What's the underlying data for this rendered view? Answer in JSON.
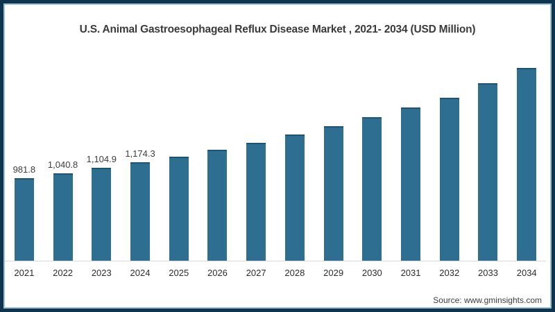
{
  "frame": {
    "border_color": "#0e3450",
    "inner_line_color": "#9ec1d3",
    "background": "#ffffff"
  },
  "title": "U.S. Animal Gastroesophageal Reflux Disease Market , 2021- 2034 (USD Million)",
  "source": "Source: www.gminsights.com",
  "chart_data": {
    "type": "bar",
    "title": "U.S. Animal Gastroesophageal Reflux Disease Market , 2021- 2034 (USD Million)",
    "unit": "USD Million",
    "categories": [
      "2021",
      "2022",
      "2023",
      "2024",
      "2025",
      "2026",
      "2027",
      "2028",
      "2029",
      "2030",
      "2031",
      "2032",
      "2033",
      "2034"
    ],
    "values": [
      981.8,
      1040.8,
      1104.9,
      1174.3,
      1240,
      1320,
      1405,
      1500,
      1600,
      1705,
      1822,
      1942,
      2110,
      2295
    ],
    "data_labels": [
      "981.8",
      "1,040.8",
      "1,104.9",
      "1,174.3",
      "",
      "",
      "",
      "",
      "",
      "",
      "",
      "",
      "",
      ""
    ],
    "xlabel": "",
    "ylabel": "",
    "ylim": [
      0,
      2400
    ],
    "grid": false,
    "legend": false,
    "bar_color": "#2e6e91",
    "bar_top_color": "#1e5473",
    "axis_line_color": "#d9d9d9"
  }
}
